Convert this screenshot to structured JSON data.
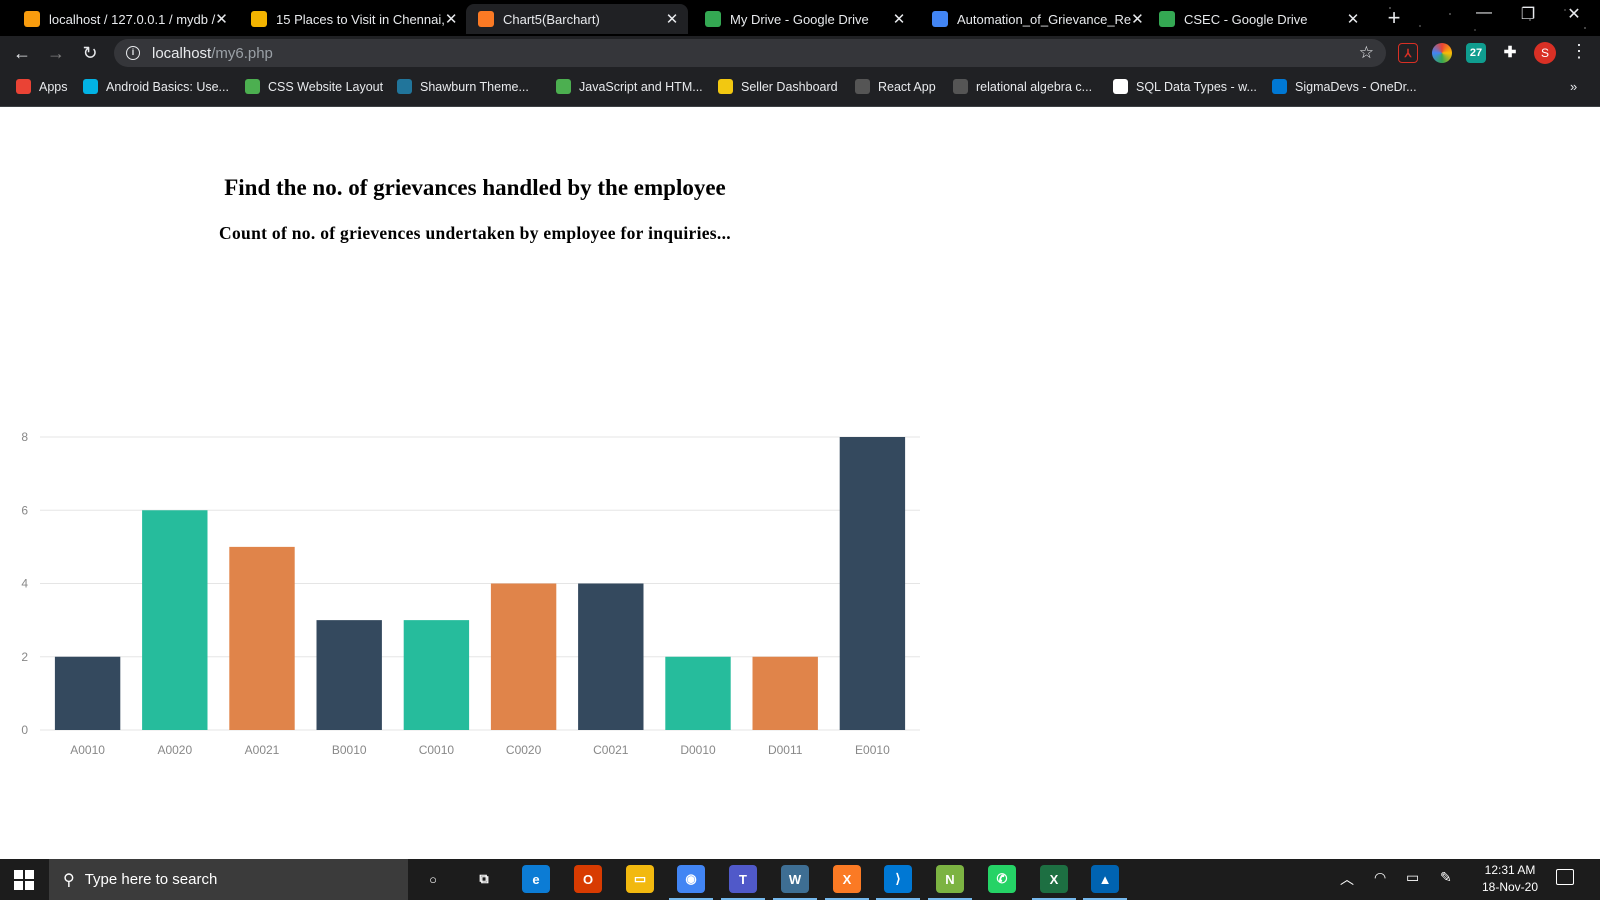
{
  "browser": {
    "tabs": [
      {
        "title": "localhost / 127.0.0.1 / mydb /",
        "icon": "phpmyadmin-icon",
        "color": "#f89c0e",
        "active": false
      },
      {
        "title": "15 Places to Visit in Chennai,",
        "icon": "info-icon",
        "color": "#f4b400",
        "active": false
      },
      {
        "title": "Chart5(Barchart)",
        "icon": "xampp-icon",
        "color": "#fb7a24",
        "active": true
      },
      {
        "title": "My Drive - Google Drive",
        "icon": "google-drive-icon",
        "color": "#34a853",
        "active": false
      },
      {
        "title": "Automation_of_Grievance_Re",
        "icon": "google-docs-icon",
        "color": "#4285f4",
        "active": false
      },
      {
        "title": "CSEC - Google Drive",
        "icon": "google-drive-icon",
        "color": "#34a853",
        "active": false
      }
    ],
    "url_host": "localhost",
    "url_path": "/my6.php",
    "profile_initial": "S",
    "bookmarks": [
      {
        "label": "Apps",
        "icon": "apps-grid-icon",
        "color": "#ea4335"
      },
      {
        "label": "Android Basics: Use...",
        "icon": "udacity-icon",
        "color": "#02b3e4"
      },
      {
        "label": "CSS Website Layout",
        "icon": "w3schools-icon",
        "color": "#4caf50"
      },
      {
        "label": "Shawburn Theme...",
        "icon": "wordpress-icon",
        "color": "#21759b"
      },
      {
        "label": "JavaScript and HTM...",
        "icon": "w3schools-icon",
        "color": "#4caf50"
      },
      {
        "label": "Seller Dashboard",
        "icon": "seller-icon",
        "color": "#f2c811"
      },
      {
        "label": "React App",
        "icon": "react-icon",
        "color": "#555555"
      },
      {
        "label": "relational algebra c...",
        "icon": "globe-icon",
        "color": "#555555"
      },
      {
        "label": "SQL Data Types - w...",
        "icon": "w3c-icon",
        "color": "#ffffff"
      },
      {
        "label": "SigmaDevs - OneDr...",
        "icon": "onedrive-icon",
        "color": "#0078d4"
      }
    ],
    "more_label": "»"
  },
  "page": {
    "title": "Find the no. of grievances handled by the employee",
    "subtitle": "Count of no. of grievences undertaken by employee for inquiries..."
  },
  "chart_data": {
    "type": "bar",
    "title": "",
    "xlabel": "",
    "ylabel": "",
    "categories": [
      "A0010",
      "A0020",
      "A0021",
      "B0010",
      "C0010",
      "C0020",
      "C0021",
      "D0010",
      "D0011",
      "E0010"
    ],
    "values": [
      2,
      6,
      5,
      3,
      3,
      4,
      4,
      2,
      2,
      8
    ],
    "colors": [
      "#34495e",
      "#26bc9c",
      "#e0844a",
      "#34495e",
      "#26bc9c",
      "#e0844a",
      "#34495e",
      "#26bc9c",
      "#e0844a",
      "#34495e"
    ],
    "ylim": [
      0,
      8
    ],
    "yticks": [
      0,
      2,
      4,
      6,
      8
    ],
    "grid": true,
    "legend": "none"
  },
  "taskbar": {
    "search_placeholder": "Type here to search",
    "apps": [
      {
        "name": "cortana-icon",
        "glyph": "○",
        "color": "transparent"
      },
      {
        "name": "task-view-icon",
        "glyph": "⧉",
        "color": "transparent"
      },
      {
        "name": "edge-icon",
        "glyph": "e",
        "color": "#0c7cd5"
      },
      {
        "name": "office-icon",
        "glyph": "O",
        "color": "#d83b01"
      },
      {
        "name": "file-explorer-icon",
        "glyph": "▭",
        "color": "#f2b90f"
      },
      {
        "name": "chrome-icon",
        "glyph": "◉",
        "color": "#4285f4"
      },
      {
        "name": "teams-icon",
        "glyph": "T",
        "color": "#5059c9"
      },
      {
        "name": "mysql-workbench-icon",
        "glyph": "W",
        "color": "#3e6e93"
      },
      {
        "name": "xampp-icon",
        "glyph": "X",
        "color": "#fb7a24"
      },
      {
        "name": "vscode-icon",
        "glyph": "⟩",
        "color": "#0078d4"
      },
      {
        "name": "notepad-icon",
        "glyph": "N",
        "color": "#7cb342"
      },
      {
        "name": "whatsapp-icon",
        "glyph": "✆",
        "color": "#25d366"
      },
      {
        "name": "excel-icon",
        "glyph": "X",
        "color": "#1d6f42"
      },
      {
        "name": "photos-icon",
        "glyph": "▲",
        "color": "#0063b1"
      }
    ],
    "time": "12:31 AM",
    "date": "18-Nov-20"
  }
}
